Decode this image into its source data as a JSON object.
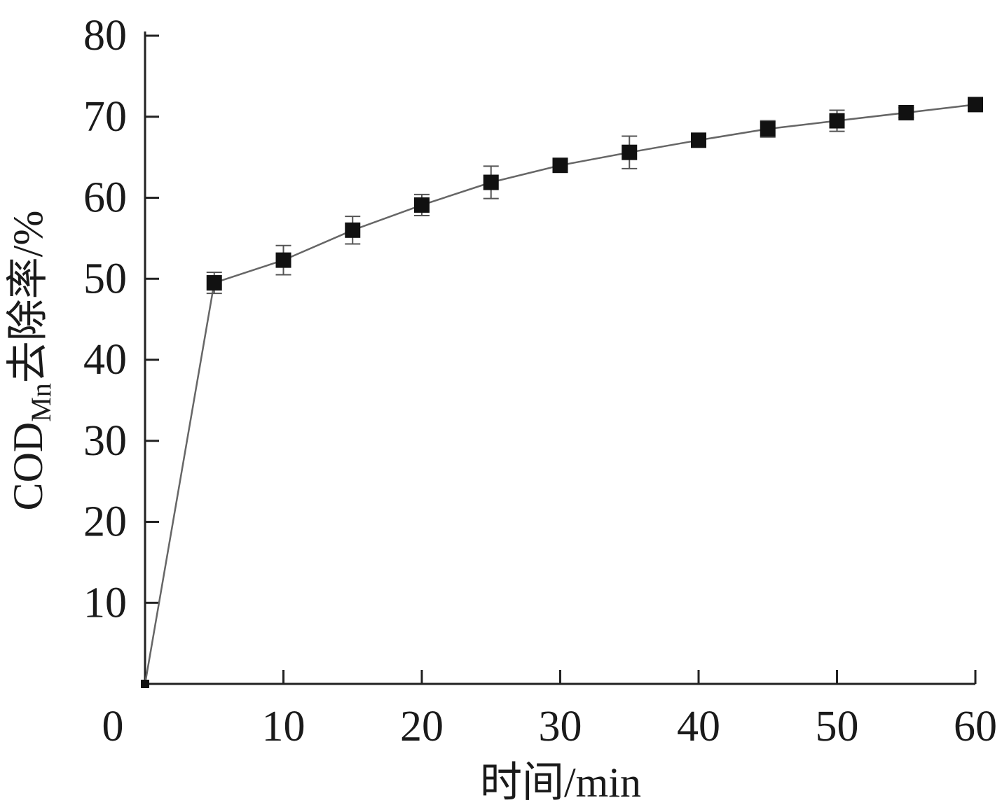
{
  "chart_data": {
    "type": "line",
    "xlabel": "时间/min",
    "ylabel": {
      "prefix": "COD",
      "subscript": "Mn",
      "suffix": "去除率/%"
    },
    "xlim": [
      0,
      60
    ],
    "ylim": [
      0,
      80
    ],
    "xticks": [
      "0",
      "10",
      "20",
      "30",
      "40",
      "50",
      "60"
    ],
    "yticks": [
      "10",
      "20",
      "30",
      "40",
      "50",
      "60",
      "70",
      "80"
    ],
    "grid": false,
    "series": [
      {
        "marker": "square",
        "color": "#111111",
        "line_color": "#666666",
        "x": [
          0,
          5,
          10,
          15,
          20,
          25,
          30,
          35,
          40,
          45,
          50,
          55,
          60
        ],
        "y": [
          0,
          49.5,
          52.3,
          56.0,
          59.1,
          61.9,
          64.0,
          65.6,
          67.1,
          68.5,
          69.5,
          70.5,
          71.5
        ],
        "error": [
          0,
          1.3,
          1.8,
          1.7,
          1.3,
          2.0,
          0.8,
          2.0,
          0.5,
          1.0,
          1.3,
          0.6,
          0.6
        ]
      }
    ]
  }
}
